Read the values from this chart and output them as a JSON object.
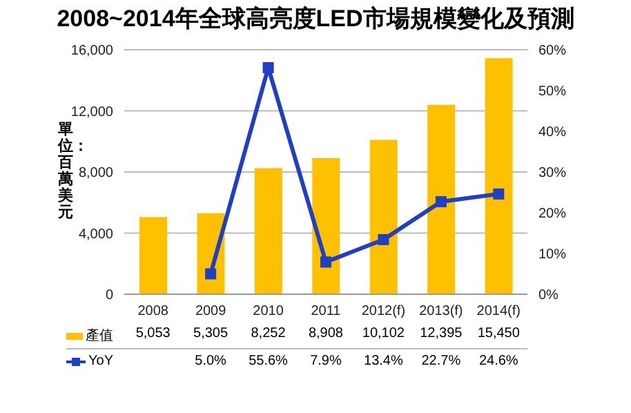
{
  "chart_data": {
    "type": "bar",
    "title": "2008~2014年全球高亮度LED市場規模變化及預測",
    "ylabel": "單位：百萬美元",
    "categories": [
      "2008",
      "2009",
      "2010",
      "2011",
      "2012(f)",
      "2013(f)",
      "2014(f)"
    ],
    "series": [
      {
        "name": "產值",
        "color": "#ffc000",
        "values": [
          5053,
          5305,
          8252,
          8908,
          10102,
          12395,
          15450
        ],
        "value_labels": [
          "5,053",
          "5,305",
          "8,252",
          "8,908",
          "10,102",
          "12,395",
          "15,450"
        ]
      },
      {
        "name": "YoY",
        "type": "line",
        "axis": "y2",
        "color": "#1f3fc4",
        "values": [
          null,
          5.0,
          55.6,
          7.9,
          13.4,
          22.7,
          24.6
        ],
        "value_labels": [
          null,
          "5.0%",
          "55.6%",
          "7.9%",
          "13.4%",
          "22.7%",
          "24.6%"
        ]
      }
    ],
    "ylim": [
      0,
      16000
    ],
    "yticks": [
      0,
      {
        "value": 4000,
        "label": "4,000"
      },
      {
        "value": 8000,
        "label": "8,000"
      },
      {
        "value": 12000,
        "label": "12,000"
      },
      {
        "value": 16000,
        "label": "16,000"
      }
    ],
    "y2lim": [
      0,
      60
    ],
    "y2ticks": [
      {
        "value": 0,
        "label": "0%"
      },
      {
        "value": 10,
        "label": "10%"
      },
      {
        "value": 20,
        "label": "20%"
      },
      {
        "value": 30,
        "label": "30%"
      },
      {
        "value": 40,
        "label": "40%"
      },
      {
        "value": 50,
        "label": "50%"
      },
      {
        "value": 60,
        "label": "60%"
      }
    ],
    "grid": "y",
    "legend": "bottom",
    "marker": "square",
    "line_style": "solid"
  }
}
